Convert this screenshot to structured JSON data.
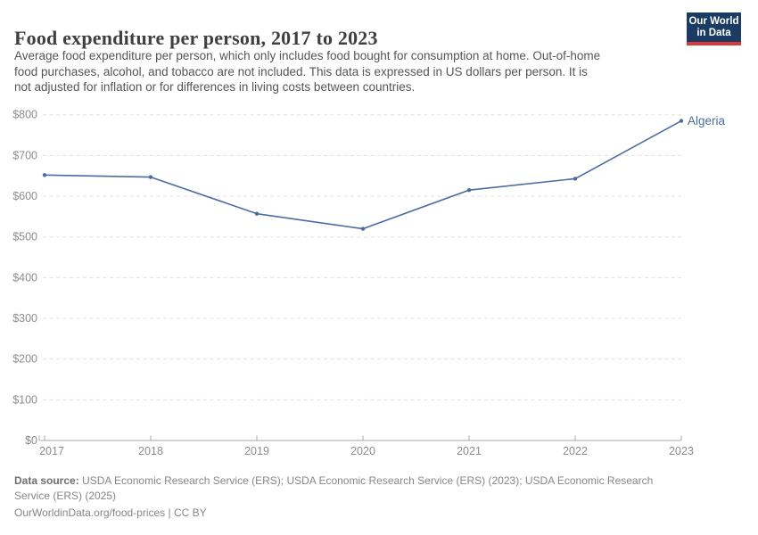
{
  "header": {
    "title": "Food expenditure per person, 2017 to 2023",
    "subtitle_lines": [
      "Average food expenditure per person, which only includes food bought for consumption at home. Out-of-home",
      "food purchases, alcohol, and tobacco are not included. This data is expressed in US dollars per person. It is",
      "not adjusted for inflation or for differences in living costs between countries."
    ],
    "logo": {
      "line1": "Our World",
      "line2": "in Data"
    }
  },
  "chart_data": {
    "type": "line",
    "x": [
      2017,
      2018,
      2019,
      2020,
      2021,
      2022,
      2023
    ],
    "series": [
      {
        "name": "Algeria",
        "values": [
          652,
          647,
          557,
          520,
          615,
          643,
          785
        ],
        "color": "#4b6ba5"
      }
    ],
    "unit": "US dollars per person",
    "ylim": [
      0,
      800
    ],
    "ytick_step": 100,
    "ytick_prefix": "$",
    "grid": "horizontal-dashed",
    "legend_position": "line-end-label"
  },
  "footer": {
    "datasource_label": "Data source:",
    "datasource_rest": " USDA Economic Research Service (ERS); USDA Economic Research Service (ERS) (2023); USDA Economic Research",
    "datasource_line2": "Service (ERS) (2025)",
    "license": "OurWorldinData.org/food-prices | CC BY"
  },
  "colors": {
    "accent_blue": "#4b6ba5",
    "logo_bg": "#1a3c64",
    "logo_stripe": "#d93a35",
    "grid": "#e0e0e0",
    "axis": "#a9a9a9",
    "axis_text": "#8c8c8c",
    "title_text": "#3f3f3f",
    "subtitle_text": "#555555",
    "footer_text": "#878787"
  }
}
